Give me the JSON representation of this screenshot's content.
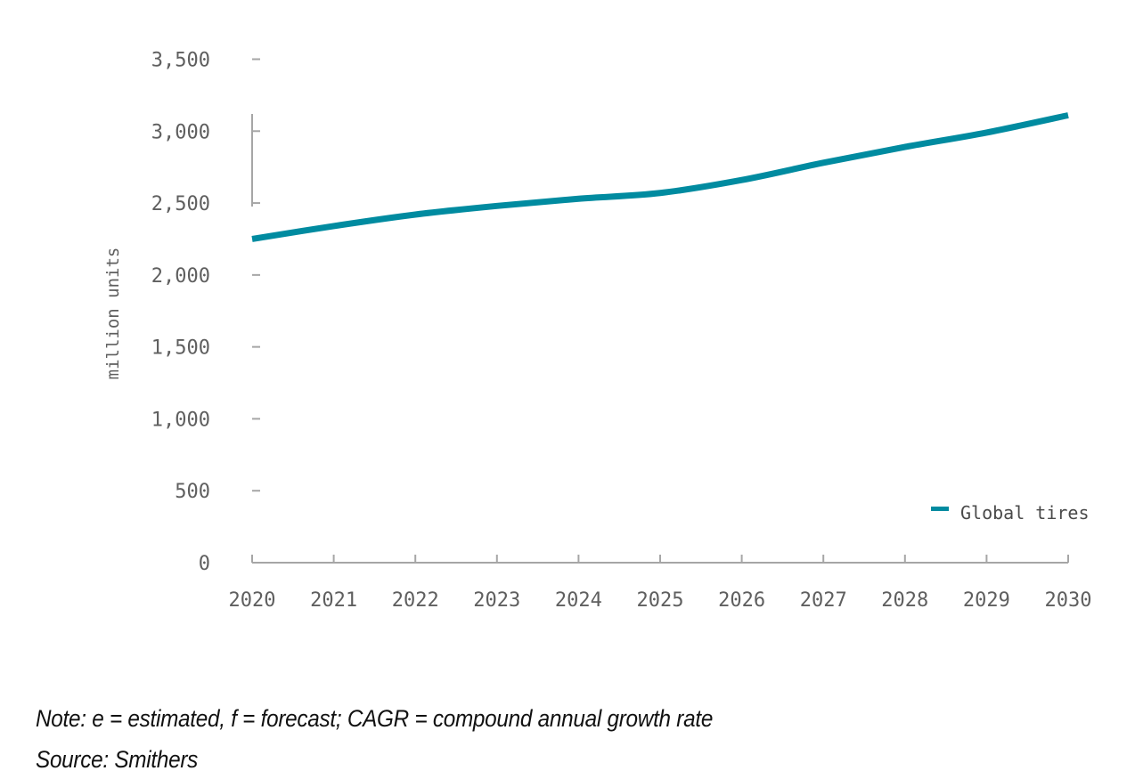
{
  "chart_data": {
    "type": "line",
    "title": "",
    "xlabel": "",
    "ylabel": "million units",
    "ylim": [
      0,
      3500
    ],
    "yticks": [
      0,
      500,
      1000,
      1500,
      2000,
      2500,
      3000,
      3500
    ],
    "ytick_labels": [
      "0",
      "500",
      "1,000",
      "1,500",
      "2,000",
      "2,500",
      "3,000",
      "3,500"
    ],
    "x": [
      "2020",
      "2021",
      "2022",
      "2023",
      "2024",
      "2025",
      "2026",
      "2027",
      "2028",
      "2029",
      "2030"
    ],
    "series": [
      {
        "name": "Global tires",
        "color": "#008ba0",
        "values": [
          2250,
          2340,
          2420,
          2480,
          2530,
          2570,
          2660,
          2780,
          2890,
          2990,
          3110
        ]
      }
    ],
    "grid": false,
    "legend_position": "bottom-right"
  },
  "footnotes": {
    "note": "Note: e = estimated, f = forecast; CAGR = compound annual growth rate",
    "source": "Source: Smithers"
  },
  "colors": {
    "axis": "#a6a6a6",
    "tick_text": "#5f5f5f",
    "series": "#008ba0"
  }
}
